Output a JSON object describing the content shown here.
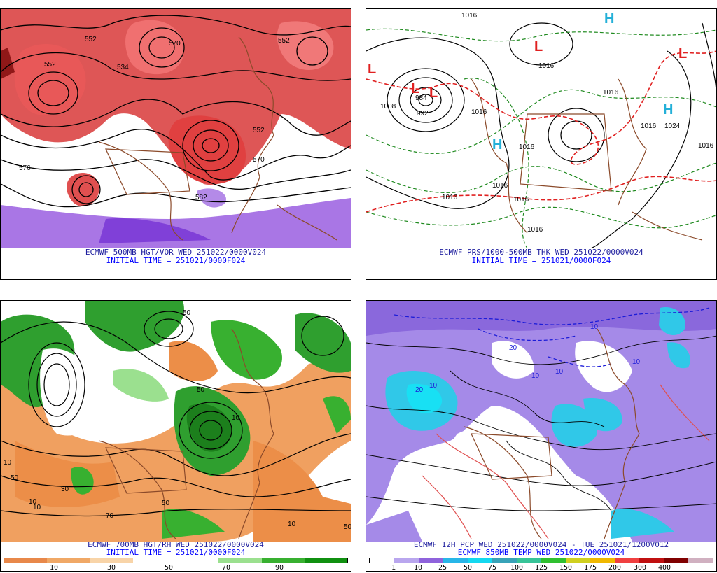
{
  "panels": [
    {
      "caption1": "ECMWF 500MB HGT/VOR WED 251022/0000V024",
      "caption2": "INITIAL TIME = 251021/0000F024",
      "labels": [
        "552",
        "534",
        "570",
        "552",
        "552",
        "576",
        "570",
        "582",
        "552"
      ]
    },
    {
      "caption1": "ECMWF PRS/1000-500MB THK WED 251022/0000V024",
      "caption2": "INITIAL TIME = 251021/0000F024",
      "labels": [
        "1016",
        "1016",
        "1008",
        "1016",
        "1016",
        "1024",
        "1016",
        "1016",
        "1016",
        "992",
        "984",
        "1016",
        "1016",
        "1016",
        "1016"
      ],
      "highs": [
        "H",
        "H",
        "H"
      ],
      "lows": [
        "L",
        "L",
        "L",
        "L",
        "L"
      ]
    },
    {
      "caption1": "ECMWF 700MB HGT/RH WED 251022/0000V024",
      "caption2": "INITIAL TIME = 251021/0000F024",
      "labels": [
        "50",
        "10",
        "10",
        "30",
        "50",
        "10",
        "50",
        "70",
        "10",
        "50",
        "10",
        "50"
      ],
      "colorbar": {
        "colors": [
          "#e8884a",
          "#f0a866",
          "#f8d4a8",
          "#ffffff",
          "#ffffff",
          "#9be08f",
          "#38b030",
          "#109010"
        ],
        "ticks": [
          "10",
          "30",
          "50",
          "70",
          "90"
        ]
      }
    },
    {
      "caption1": "ECMWF 12H PCP WED 251022/0000V024 - TUE 251021/1200V012",
      "caption2": "ECMWF 850MB TEMP WED 251022/0000V024",
      "labels": [
        "10",
        "20",
        "10",
        "10",
        "20",
        "10",
        "10"
      ],
      "colorbar": {
        "colors": [
          "#ffffff",
          "#b9a6ee",
          "#8f63dc",
          "#27b6e8",
          "#14d8f0",
          "#38a3b8",
          "#38c498",
          "#30c030",
          "#d0d020",
          "#f0b800",
          "#f04040",
          "#c01010",
          "#800000",
          "#d0b0c0"
        ],
        "ticks": [
          "1",
          "10",
          "25",
          "50",
          "75",
          "100",
          "125",
          "150",
          "175",
          "200",
          "300",
          "400"
        ]
      }
    }
  ]
}
